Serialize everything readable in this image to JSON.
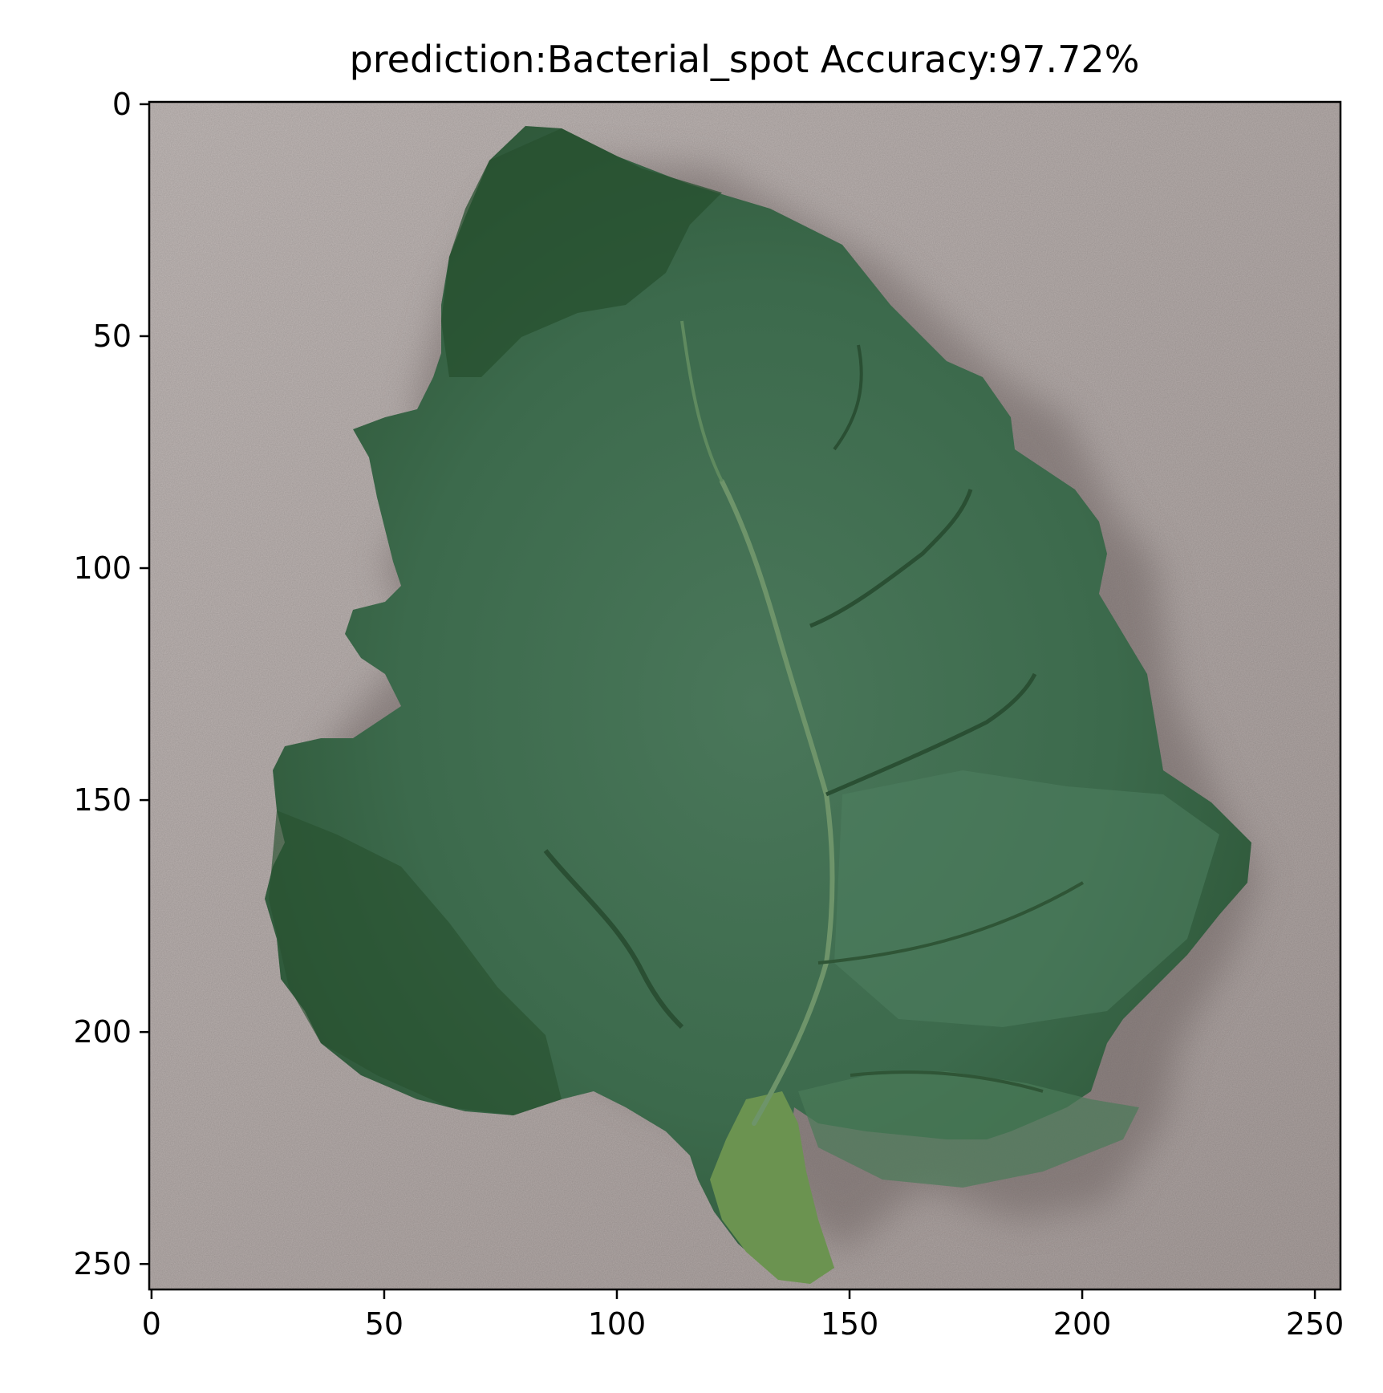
{
  "chart_data": {
    "type": "image",
    "title": "prediction:Bacterial_spot Accuracy:97.72%",
    "xlabel": "",
    "ylabel": "",
    "xlim": [
      -0.5,
      255.5
    ],
    "ylim": [
      255.5,
      -0.5
    ],
    "x_ticks": [
      0,
      50,
      100,
      150,
      200,
      250
    ],
    "y_ticks": [
      0,
      50,
      100,
      150,
      200,
      250
    ],
    "x_tick_labels": [
      "0",
      "50",
      "100",
      "150",
      "200",
      "250"
    ],
    "y_tick_labels": [
      "0",
      "50",
      "100",
      "150",
      "200",
      "250"
    ],
    "grid": false,
    "image_content": "tomato-leaf-photo"
  },
  "colors": {
    "background": "#b9b0ae",
    "leaf_dark": "#2f5a3c",
    "leaf_mid": "#3d6b4d",
    "leaf_light": "#4f7a5a",
    "stem": "#5f8a4a",
    "vein": "#6e8f6a",
    "shadow": "#7a6f6d"
  }
}
